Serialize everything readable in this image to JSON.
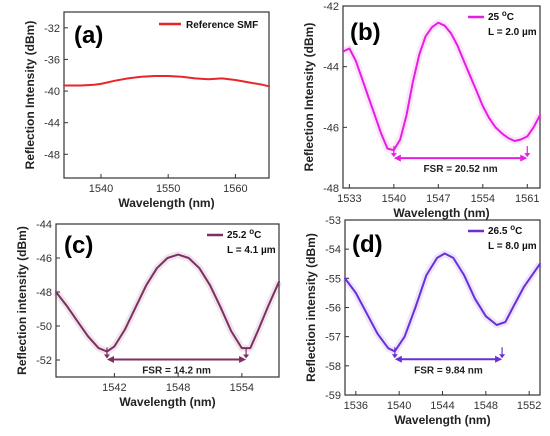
{
  "chart_data": [
    {
      "panel": "(a)",
      "type": "line",
      "xlabel": "Wavelength (nm)",
      "ylabel": "Reflection Intensity (dBm)",
      "xlim": [
        1534.5,
        1565
      ],
      "ylim": [
        -51,
        -30
      ],
      "xticks": [
        1540,
        1550,
        1560
      ],
      "yticks": [
        -32,
        -36,
        -40,
        -44,
        -48
      ],
      "legend_position": "top-right",
      "series": [
        {
          "name": "Reference SMF",
          "color": "#e8262a",
          "x": [
            1534.5,
            1537,
            1539,
            1540,
            1542,
            1544,
            1546,
            1548,
            1550,
            1552,
            1554,
            1556,
            1558,
            1560,
            1562,
            1564,
            1565
          ],
          "y": [
            -39.3,
            -39.3,
            -39.2,
            -39.1,
            -38.7,
            -38.4,
            -38.2,
            -38.1,
            -38.1,
            -38.2,
            -38.4,
            -38.5,
            -38.4,
            -38.6,
            -38.9,
            -39.2,
            -39.4
          ]
        }
      ]
    },
    {
      "panel": "(b)",
      "type": "line",
      "xlabel": "Wavelength (nm)",
      "ylabel": "Reflection Intensity (dBm)",
      "xlim": [
        1532,
        1563
      ],
      "ylim": [
        -48,
        -42
      ],
      "xticks": [
        1533,
        1540,
        1547,
        1554,
        1561
      ],
      "yticks": [
        -42,
        -44,
        -46,
        -48
      ],
      "legend": [
        "25 °C",
        "L = 2.0 µm"
      ],
      "legend_position": "top-right",
      "annotation": "FSR = 20.52 nm",
      "series": [
        {
          "name": "25 °C",
          "color": "#e41fe1",
          "x": [
            1532,
            1533,
            1534,
            1535,
            1536,
            1537,
            1538,
            1539,
            1540,
            1541,
            1542,
            1543,
            1544,
            1545,
            1546,
            1547,
            1548,
            1549,
            1550,
            1551,
            1552,
            1553,
            1554,
            1555,
            1556,
            1557,
            1558,
            1559,
            1560,
            1561,
            1562,
            1563
          ],
          "y": [
            -43.5,
            -43.4,
            -43.8,
            -44.4,
            -45.0,
            -45.6,
            -46.2,
            -46.7,
            -46.75,
            -46.4,
            -45.6,
            -44.5,
            -43.6,
            -43.0,
            -42.7,
            -42.55,
            -42.65,
            -42.9,
            -43.3,
            -43.8,
            -44.3,
            -44.8,
            -45.3,
            -45.7,
            -46.0,
            -46.2,
            -46.35,
            -46.45,
            -46.4,
            -46.3,
            -46.0,
            -45.6
          ]
        }
      ]
    },
    {
      "panel": "(c)",
      "type": "line",
      "xlabel": "Wavelength (nm)",
      "ylabel": "Reflection intensity (dBm)",
      "xlim": [
        1536.5,
        1557.5
      ],
      "ylim": [
        -53,
        -44
      ],
      "xticks": [
        1542,
        1548,
        1554
      ],
      "yticks": [
        -44,
        -46,
        -48,
        -50,
        -52
      ],
      "legend": [
        "25.2 °C",
        "L = 4.1 µm"
      ],
      "legend_position": "top-right",
      "annotation": "FSR = 14.2 nm",
      "series": [
        {
          "name": "25.2 °C",
          "color": "#7d2f62",
          "x": [
            1536.5,
            1537.5,
            1538.5,
            1539.5,
            1540.5,
            1541.3,
            1542,
            1543,
            1544,
            1545,
            1546,
            1547,
            1548,
            1549,
            1550,
            1551,
            1552,
            1553,
            1554,
            1554.8,
            1555.5,
            1556.5,
            1557.5
          ],
          "y": [
            -48.0,
            -48.8,
            -49.7,
            -50.6,
            -51.3,
            -51.5,
            -51.2,
            -50.2,
            -48.9,
            -47.6,
            -46.6,
            -46.0,
            -45.8,
            -46.0,
            -46.6,
            -47.6,
            -48.9,
            -50.3,
            -51.3,
            -51.3,
            -50.3,
            -48.8,
            -47.4
          ]
        }
      ]
    },
    {
      "panel": "(d)",
      "type": "line",
      "xlabel": "Wavelength (nm)",
      "ylabel": "Reflection intensity (dBm)",
      "xlim": [
        1535,
        1553
      ],
      "ylim": [
        -59,
        -53
      ],
      "xticks": [
        1536,
        1540,
        1544,
        1548,
        1552
      ],
      "yticks": [
        -53,
        -54,
        -55,
        -56,
        -57,
        -58,
        -59
      ],
      "legend": [
        "26.5 °C",
        "L = 8.0 µm"
      ],
      "legend_position": "top-right",
      "annotation": "FSR = 9.84 nm",
      "series": [
        {
          "name": "26.5 °C",
          "color": "#6a2fd8",
          "x": [
            1535,
            1536,
            1537,
            1538,
            1539,
            1539.6,
            1540.5,
            1541.5,
            1542.5,
            1543.5,
            1544.2,
            1545,
            1546,
            1547,
            1548,
            1549,
            1549.8,
            1550.5,
            1551.5,
            1553
          ],
          "y": [
            -55.0,
            -55.5,
            -56.2,
            -56.9,
            -57.4,
            -57.5,
            -57.0,
            -56.0,
            -54.9,
            -54.3,
            -54.15,
            -54.3,
            -54.9,
            -55.7,
            -56.3,
            -56.6,
            -56.5,
            -56.0,
            -55.3,
            -54.5
          ]
        }
      ]
    }
  ]
}
